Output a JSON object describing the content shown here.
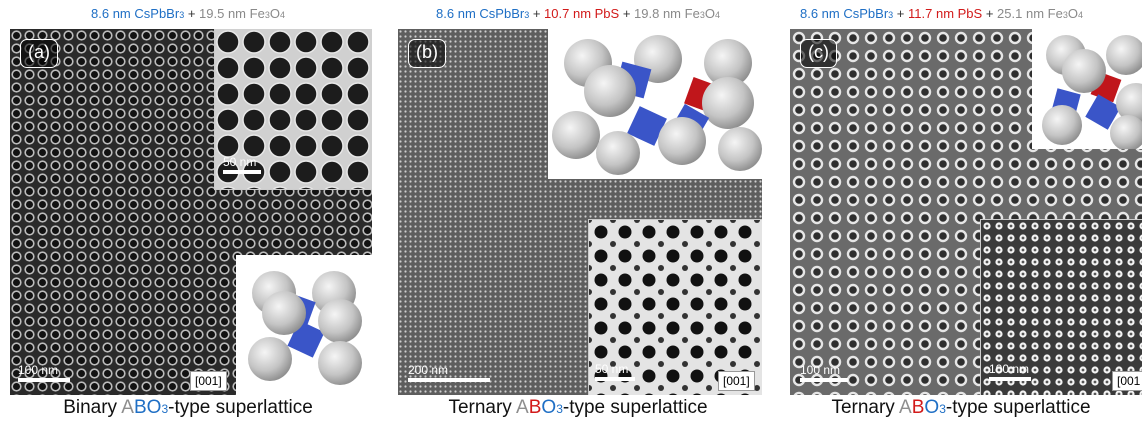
{
  "panels": [
    {
      "id": "a",
      "header": {
        "cspbbr_size": "8.6 nm",
        "cspbbr_name": "CsPbBr",
        "cspbbr_sub": "3",
        "plus1": " + ",
        "fe_size": "19.5 nm",
        "fe_name": "Fe",
        "fe_sub1": "3",
        "fe_o": "O",
        "fe_sub2": "4"
      },
      "label": "(a)",
      "scale_main": "100 nm",
      "scale_inset": "50 nm",
      "zone_axis": "[001]",
      "caption": {
        "prefix": "Binary ",
        "a": "A",
        "b": "B",
        "o": "O",
        "sub": "3",
        "suffix": "-type superlattice"
      }
    },
    {
      "id": "b",
      "header": {
        "cspbbr_size": "8.6 nm",
        "cspbbr_name": "CsPbBr",
        "cspbbr_sub": "3",
        "plus1": " + ",
        "pbs": "10.7 nm PbS",
        "plus2": " + ",
        "fe_size": "19.8 nm",
        "fe_name": "Fe",
        "fe_sub1": "3",
        "fe_o": "O",
        "fe_sub2": "4"
      },
      "label": "(b)",
      "scale_main": "200 nm",
      "scale_inset": "50 nm",
      "zone_axis": "[001]",
      "caption": {
        "prefix": "Ternary ",
        "a": "A",
        "b": "B",
        "o": "O",
        "sub": "3",
        "suffix": "-type superlattice"
      }
    },
    {
      "id": "c",
      "header": {
        "cspbbr_size": "8.6 nm",
        "cspbbr_name": "CsPbBr",
        "cspbbr_sub": "3",
        "plus1": " + ",
        "pbs": "11.7 nm PbS",
        "plus2": " + ",
        "fe_size": "25.1 nm",
        "fe_name": "Fe",
        "fe_sub1": "3",
        "fe_o": "O",
        "fe_sub2": "4"
      },
      "label": "(c)",
      "scale_main": "100 nm",
      "scale_inset": "100 nm",
      "zone_axis": "[001",
      "caption": {
        "prefix": "Ternary ",
        "a": "A",
        "b": "B",
        "o": "O",
        "sub": "3",
        "suffix": "-type superlattice"
      }
    }
  ],
  "colors": {
    "cspbbr": "#1f6fc5",
    "pbs": "#d21a1a",
    "fe3o4": "#8a8a8a",
    "cube": "#3a55c8",
    "sphere": "#bdbdbd",
    "red_cube": "#c0161b"
  }
}
